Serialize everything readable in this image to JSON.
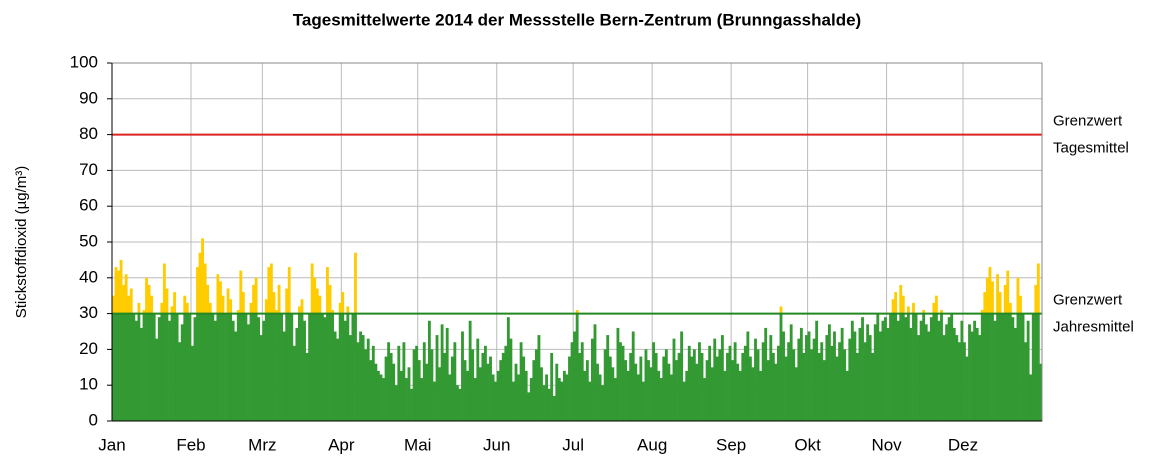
{
  "chart_data": {
    "type": "bar",
    "title": "Tagesmittelwerte 2014 der Messstelle Bern-Zentrum (Brunngasshalde)",
    "y_label": "Stickstoffdioxid (µg/m³)",
    "categories": [
      "Jan",
      "Feb",
      "Mrz",
      "Apr",
      "Mai",
      "Jun",
      "Jul",
      "Aug",
      "Sep",
      "Okt",
      "Nov",
      "Dez"
    ],
    "values": [
      [
        35,
        43,
        42,
        45,
        38,
        41,
        35,
        37,
        30,
        28,
        33,
        26,
        31,
        40,
        38,
        35,
        30,
        23,
        29,
        33,
        44,
        37,
        28,
        32,
        36,
        30,
        22,
        27,
        35,
        33,
        30
      ],
      [
        21,
        29,
        43,
        47,
        51,
        44,
        38,
        33,
        30,
        28,
        41,
        39,
        35,
        30,
        37,
        34,
        28,
        25,
        31,
        42,
        36,
        30,
        27,
        33,
        38,
        40,
        29,
        24
      ],
      [
        28,
        34,
        43,
        44,
        36,
        31,
        38,
        30,
        25,
        37,
        43,
        30,
        21,
        26,
        32,
        34,
        28,
        19,
        30,
        44,
        40,
        37,
        35,
        30,
        29,
        43,
        38,
        31,
        25,
        23,
        33
      ],
      [
        36,
        28,
        32,
        24,
        30,
        47,
        22,
        25,
        24,
        20,
        23,
        17,
        21,
        16,
        14,
        13,
        12,
        18,
        22,
        19,
        16,
        10,
        21,
        14,
        22,
        12,
        15,
        9,
        20,
        21
      ],
      [
        17,
        12,
        22,
        16,
        28,
        20,
        11,
        24,
        15,
        27,
        19,
        26,
        13,
        18,
        22,
        10,
        9,
        25,
        17,
        14,
        28,
        20,
        12,
        23,
        15,
        19,
        21,
        16,
        18,
        13,
        11
      ],
      [
        14,
        17,
        19,
        21,
        29,
        23,
        11,
        16,
        13,
        22,
        18,
        14,
        8,
        12,
        17,
        20,
        24,
        15,
        10,
        13,
        9,
        19,
        7,
        16,
        12,
        11,
        14,
        13,
        18,
        22
      ],
      [
        25,
        31,
        19,
        22,
        14,
        17,
        11,
        23,
        27,
        16,
        13,
        10,
        20,
        24,
        18,
        15,
        12,
        26,
        22,
        21,
        17,
        14,
        19,
        25,
        16,
        13,
        18,
        11,
        20,
        17,
        15
      ],
      [
        22,
        19,
        14,
        12,
        18,
        20,
        16,
        13,
        23,
        17,
        19,
        25,
        11,
        14,
        21,
        18,
        20,
        16,
        22,
        19,
        12,
        17,
        21,
        15,
        23,
        18,
        20,
        24,
        14,
        19,
        21
      ],
      [
        17,
        22,
        16,
        14,
        19,
        21,
        25,
        18,
        15,
        23,
        20,
        14,
        22,
        26,
        17,
        24,
        19,
        16,
        21,
        32,
        25,
        18,
        22,
        27,
        20,
        15,
        23,
        26,
        19,
        24
      ],
      [
        25,
        20,
        23,
        28,
        19,
        22,
        17,
        24,
        27,
        21,
        25,
        18,
        22,
        26,
        20,
        14,
        23,
        28,
        25,
        19,
        26,
        29,
        22,
        27,
        24,
        19,
        27,
        30,
        25,
        28,
        29
      ],
      [
        26,
        30,
        34,
        36,
        28,
        38,
        35,
        29,
        32,
        26,
        33,
        30,
        24,
        28,
        31,
        27,
        25,
        29,
        33,
        35,
        28,
        31,
        24,
        27,
        29,
        30,
        26,
        24,
        22,
        28
      ],
      [
        22,
        18,
        27,
        25,
        28,
        26,
        24,
        31,
        36,
        40,
        43,
        39,
        28,
        41,
        36,
        30,
        38,
        42,
        33,
        29,
        26,
        40,
        35,
        30,
        22,
        28,
        13,
        30,
        38,
        44,
        16
      ]
    ],
    "color": "#339933",
    "exceed_color": "#ffcc00",
    "ylim": [
      0,
      100
    ],
    "yticks": [
      0,
      10,
      20,
      30,
      40,
      50,
      60,
      70,
      80,
      90,
      100
    ],
    "grid": true,
    "thresholds": [
      {
        "value": 80,
        "color": "#dd2222",
        "label_lines": [
          "Grenzwert",
          "Tagesmittel"
        ]
      },
      {
        "value": 30,
        "color": "#228822",
        "label_lines": [
          "Grenzwert",
          "Jahresmittel"
        ],
        "split": true
      }
    ]
  }
}
